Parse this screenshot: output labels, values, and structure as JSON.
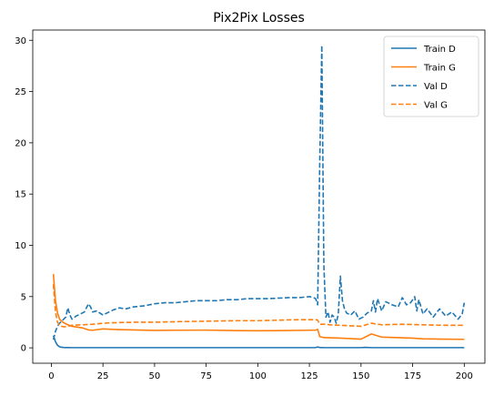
{
  "chart_data": {
    "type": "line",
    "title": "Pix2Pix Losses",
    "xlabel": "",
    "ylabel": "",
    "xlim": [
      -9,
      210
    ],
    "ylim": [
      -1.5,
      31
    ],
    "xticks": [
      0,
      25,
      50,
      75,
      100,
      125,
      150,
      175,
      200
    ],
    "yticks": [
      0,
      5,
      10,
      15,
      20,
      25,
      30
    ],
    "grid": false,
    "legend": "top-right",
    "series": [
      {
        "name": "Train D",
        "color": "#1f77b4",
        "dash": "solid",
        "x": [
          1,
          2,
          3,
          4,
          5,
          6,
          8,
          10,
          15,
          20,
          30,
          50,
          75,
          100,
          125,
          128,
          129,
          130,
          131,
          132,
          140,
          150,
          152,
          155,
          160,
          175,
          200
        ],
        "y": [
          1.2,
          0.6,
          0.25,
          0.1,
          0.06,
          0.04,
          0.03,
          0.02,
          0.02,
          0.02,
          0.02,
          0.02,
          0.02,
          0.02,
          0.02,
          0.03,
          0.08,
          0.04,
          0.03,
          0.02,
          0.02,
          0.02,
          0.05,
          0.02,
          0.02,
          0.02,
          0.02
        ]
      },
      {
        "name": "Train G",
        "color": "#ff7f0e",
        "dash": "solid",
        "x": [
          1,
          2,
          3,
          4,
          5,
          6,
          8,
          10,
          15,
          18,
          20,
          25,
          30,
          40,
          50,
          60,
          75,
          90,
          100,
          110,
          125,
          128,
          129,
          130,
          132,
          135,
          140,
          145,
          150,
          155,
          160,
          170,
          175,
          180,
          190,
          200
        ],
        "y": [
          7.2,
          4.6,
          3.4,
          2.8,
          2.6,
          2.45,
          2.25,
          2.1,
          1.95,
          1.75,
          1.72,
          1.85,
          1.8,
          1.75,
          1.7,
          1.72,
          1.73,
          1.68,
          1.67,
          1.68,
          1.72,
          1.73,
          1.8,
          1.1,
          1.0,
          0.98,
          0.95,
          0.9,
          0.85,
          1.35,
          1.05,
          0.98,
          0.95,
          0.88,
          0.85,
          0.83
        ]
      },
      {
        "name": "Val D",
        "color": "#1f77b4",
        "dash": "dashed",
        "x": [
          1,
          2,
          3,
          4,
          5,
          6,
          7,
          8,
          9,
          10,
          12,
          14,
          16,
          18,
          19,
          20,
          22,
          25,
          28,
          30,
          33,
          36,
          40,
          45,
          50,
          55,
          60,
          65,
          70,
          75,
          80,
          85,
          90,
          95,
          100,
          105,
          110,
          115,
          120,
          125,
          127,
          128,
          129,
          130,
          131,
          132,
          133,
          134,
          135,
          136,
          137,
          138,
          139,
          140,
          141,
          142,
          143,
          145,
          147,
          149,
          151,
          153,
          155,
          156,
          157,
          158,
          160,
          162,
          165,
          168,
          170,
          172,
          174,
          176,
          177,
          178,
          180,
          182,
          185,
          188,
          191,
          194,
          197,
          199,
          200
        ],
        "y": [
          0.8,
          1.6,
          2.1,
          2.4,
          2.6,
          2.8,
          3.0,
          3.9,
          3.2,
          2.8,
          3.1,
          3.3,
          3.5,
          4.3,
          4.0,
          3.5,
          3.6,
          3.2,
          3.5,
          3.7,
          3.9,
          3.8,
          4.0,
          4.1,
          4.3,
          4.4,
          4.4,
          4.5,
          4.6,
          4.6,
          4.6,
          4.7,
          4.7,
          4.8,
          4.8,
          4.8,
          4.85,
          4.9,
          4.9,
          5.0,
          4.9,
          4.8,
          4.2,
          18.0,
          29.5,
          8.0,
          3.0,
          3.5,
          2.5,
          3.2,
          3.0,
          2.4,
          3.3,
          7.0,
          4.6,
          3.8,
          3.4,
          3.2,
          3.6,
          2.8,
          3.0,
          3.4,
          3.6,
          4.6,
          3.5,
          4.8,
          3.6,
          4.5,
          4.2,
          4.0,
          4.9,
          4.2,
          4.4,
          5.0,
          3.6,
          4.7,
          3.3,
          3.8,
          3.0,
          3.8,
          3.1,
          3.5,
          2.8,
          3.3,
          4.4
        ]
      },
      {
        "name": "Val G",
        "color": "#ff7f0e",
        "dash": "dashed",
        "x": [
          1,
          2,
          3,
          4,
          5,
          6,
          8,
          10,
          15,
          20,
          25,
          30,
          40,
          50,
          60,
          75,
          90,
          100,
          110,
          120,
          125,
          128,
          129,
          130,
          133,
          135,
          140,
          145,
          150,
          155,
          160,
          170,
          180,
          190,
          200
        ],
        "y": [
          6.2,
          3.5,
          2.5,
          2.2,
          2.1,
          2.05,
          2.1,
          2.2,
          2.25,
          2.3,
          2.4,
          2.45,
          2.5,
          2.5,
          2.55,
          2.6,
          2.65,
          2.65,
          2.7,
          2.75,
          2.75,
          2.75,
          2.7,
          2.3,
          2.3,
          2.25,
          2.2,
          2.15,
          2.1,
          2.4,
          2.25,
          2.3,
          2.25,
          2.2,
          2.2
        ]
      }
    ]
  }
}
